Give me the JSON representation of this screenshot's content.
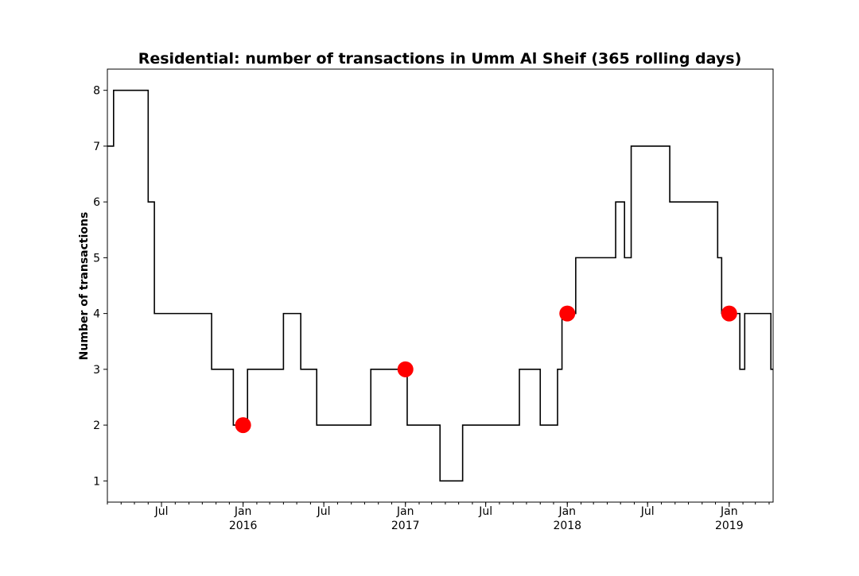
{
  "chart_data": {
    "type": "line",
    "title": "Residential: number of transactions in Umm Al Sheif (365 rolling days)",
    "xlabel": "",
    "ylabel": "Number of transactions",
    "xlim": [
      "2015-03-01",
      "2019-04-10"
    ],
    "ylim": [
      0.62,
      8.38
    ],
    "yticks": [
      1,
      2,
      3,
      4,
      5,
      6,
      7,
      8
    ],
    "xticks_major": [
      {
        "date": "2015-07-01",
        "label": "Jul",
        "sub": ""
      },
      {
        "date": "2016-01-01",
        "label": "Jan",
        "sub": "2016"
      },
      {
        "date": "2016-07-01",
        "label": "Jul",
        "sub": ""
      },
      {
        "date": "2017-01-01",
        "label": "Jan",
        "sub": "2017"
      },
      {
        "date": "2017-07-01",
        "label": "Jul",
        "sub": ""
      },
      {
        "date": "2018-01-01",
        "label": "Jan",
        "sub": "2018"
      },
      {
        "date": "2018-07-01",
        "label": "Jul",
        "sub": ""
      },
      {
        "date": "2019-01-01",
        "label": "Jan",
        "sub": "2019"
      }
    ],
    "grid": false,
    "series": [
      {
        "style": "step",
        "color": "#000000",
        "points": [
          [
            "2015-03-01",
            7
          ],
          [
            "2015-03-15",
            8
          ],
          [
            "2015-06-01",
            6
          ],
          [
            "2015-06-15",
            4
          ],
          [
            "2015-10-22",
            3
          ],
          [
            "2015-12-10",
            2
          ],
          [
            "2016-01-11",
            3
          ],
          [
            "2016-04-01",
            4
          ],
          [
            "2016-05-10",
            3
          ],
          [
            "2016-06-15",
            2
          ],
          [
            "2016-10-15",
            3
          ],
          [
            "2017-01-05",
            2
          ],
          [
            "2017-03-20",
            1
          ],
          [
            "2017-05-10",
            2
          ],
          [
            "2017-09-15",
            3
          ],
          [
            "2017-11-01",
            2
          ],
          [
            "2017-12-10",
            3
          ],
          [
            "2017-12-20",
            4
          ],
          [
            "2018-01-20",
            5
          ],
          [
            "2018-04-20",
            6
          ],
          [
            "2018-05-10",
            5
          ],
          [
            "2018-05-25",
            7
          ],
          [
            "2018-08-20",
            6
          ],
          [
            "2018-12-06",
            5
          ],
          [
            "2018-12-15",
            4
          ],
          [
            "2019-01-25",
            3
          ],
          [
            "2019-02-05",
            4
          ],
          [
            "2019-04-05",
            3
          ],
          [
            "2019-04-10",
            3
          ]
        ]
      },
      {
        "style": "scatter",
        "color": "#ff0000",
        "points": [
          [
            "2016-01-01",
            2
          ],
          [
            "2017-01-01",
            3
          ],
          [
            "2018-01-01",
            4
          ],
          [
            "2019-01-01",
            4
          ]
        ]
      }
    ]
  }
}
